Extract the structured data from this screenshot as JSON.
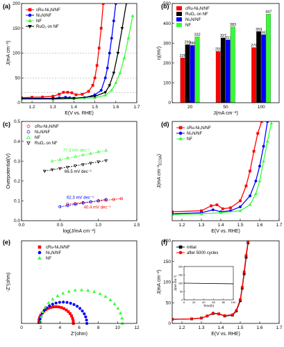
{
  "colors": {
    "cru": "#ff0000",
    "ni3n": "#0000ff",
    "nf": "#33ff33",
    "ruo2": "#000000"
  },
  "chart_data": [
    {
      "id": "a",
      "letter": "(a)",
      "type": "line",
      "xlabel": "E(V vs. RHE)",
      "ylabel": "J(mA cm⁻²)",
      "xlim": [
        1.15,
        1.7
      ],
      "ylim": [
        0,
        200
      ],
      "xticks": [
        1.2,
        1.3,
        1.4,
        1.5,
        1.6,
        1.7
      ],
      "yticks": [
        0,
        50,
        100,
        150,
        200
      ],
      "hlines": [
        20,
        50,
        100
      ],
      "legend": "top-left",
      "series": [
        {
          "name": "cRu-Ni₃N/NF",
          "color": "cru",
          "marker": "square",
          "x": [
            1.15,
            1.2,
            1.25,
            1.3,
            1.33,
            1.35,
            1.37,
            1.39,
            1.41,
            1.44,
            1.47,
            1.49,
            1.5,
            1.51,
            1.52,
            1.53,
            1.54
          ],
          "y": [
            10,
            11,
            11.5,
            13,
            17,
            21,
            21,
            20,
            16,
            17,
            23,
            35,
            50,
            75,
            110,
            150,
            200
          ]
        },
        {
          "name": "Ni₃N/NF",
          "color": "ni3n",
          "marker": "circle",
          "x": [
            1.15,
            1.3,
            1.33,
            1.36,
            1.38,
            1.4,
            1.45,
            1.5,
            1.53,
            1.55,
            1.56,
            1.57,
            1.58,
            1.59,
            1.6
          ],
          "y": [
            9,
            9,
            10,
            11,
            10,
            9,
            10,
            16,
            25,
            50,
            70,
            100,
            130,
            165,
            200
          ]
        },
        {
          "name": "NF",
          "color": "nf",
          "marker": "triangle",
          "x": [
            1.15,
            1.3,
            1.4,
            1.5,
            1.55,
            1.58,
            1.6,
            1.62,
            1.64,
            1.66,
            1.68
          ],
          "y": [
            7,
            7,
            8,
            10,
            15,
            25,
            40,
            60,
            90,
            130,
            175
          ]
        },
        {
          "name": "RuO₂ on NF",
          "color": "ruo2",
          "marker": "triangle-down",
          "x": [
            1.15,
            1.3,
            1.4,
            1.5,
            1.55,
            1.57,
            1.59,
            1.61,
            1.63,
            1.65
          ],
          "y": [
            8,
            8,
            9,
            13,
            21,
            35,
            60,
            100,
            150,
            200
          ]
        }
      ]
    },
    {
      "id": "b",
      "letter": "(b)",
      "type": "bar",
      "xlabel": "J(mA cm⁻²)",
      "ylabel": "η(mV)",
      "ylim": [
        0,
        500
      ],
      "yticks": [
        0,
        100,
        200,
        300,
        400,
        500
      ],
      "categories": [
        "20",
        "50",
        "100"
      ],
      "legend": "top-left",
      "series": [
        {
          "name": "cRu-Ni₃N/NF",
          "color": "cru",
          "values": [
            226,
            259,
            278
          ]
        },
        {
          "name": "RuO₂ on NF",
          "color": "ruo2",
          "values": [
            293,
            327,
            359
          ]
        },
        {
          "name": "Ni₃N/NF",
          "color": "ni3n",
          "values": [
            289,
            317,
            343
          ]
        },
        {
          "name": "NF",
          "color": "nf",
          "values": [
            332,
            383,
            447
          ]
        }
      ]
    },
    {
      "id": "c",
      "letter": "(c)",
      "type": "scatter",
      "xlabel": "log(J/mA cm⁻²)",
      "ylabel": "Overpotential(V)",
      "xlim": [
        0.0,
        1.5
      ],
      "ylim": [
        0.0,
        0.5
      ],
      "xticks": [
        0.0,
        0.5,
        1.0,
        1.5
      ],
      "yticks": [
        0.0,
        0.1,
        0.2,
        0.3,
        0.4,
        0.5
      ],
      "legend": "top-left",
      "series": [
        {
          "name": "cRu-Ni₃N/NF",
          "color": "cru",
          "marker": "circle-open",
          "x": [
            0.6,
            0.7,
            0.8,
            0.9,
            1.0,
            1.1,
            1.2,
            1.3
          ],
          "y": [
            0.083,
            0.087,
            0.091,
            0.095,
            0.099,
            0.103,
            0.107,
            0.111
          ],
          "slope_label": "40.4 mV dec⁻¹"
        },
        {
          "name": "Ni₃N/NF",
          "color": "ni3n",
          "marker": "circle-open",
          "x": [
            0.5,
            0.6,
            0.7,
            0.8,
            0.9,
            1.0,
            1.1
          ],
          "y": [
            0.07,
            0.076,
            0.082,
            0.089,
            0.095,
            0.101,
            0.107
          ],
          "slope_label": "62.3 mV dec⁻¹"
        },
        {
          "name": "NF",
          "color": "nf",
          "marker": "triangle-open",
          "x": [
            0.4,
            0.5,
            0.6,
            0.7,
            0.8,
            0.9,
            1.0,
            1.1
          ],
          "y": [
            0.3,
            0.308,
            0.316,
            0.323,
            0.331,
            0.339,
            0.347,
            0.354
          ],
          "slope_label": "77.3 mV dec⁻¹"
        },
        {
          "name": "RuO₂ on NF",
          "color": "ruo2",
          "marker": "triangle-down-open",
          "x": [
            0.3,
            0.4,
            0.5,
            0.6,
            0.7,
            0.8,
            0.9,
            1.0,
            1.1
          ],
          "y": [
            0.25,
            0.257,
            0.263,
            0.27,
            0.277,
            0.283,
            0.29,
            0.297,
            0.303
          ],
          "slope_label": "66.5 mV dec⁻¹"
        }
      ]
    },
    {
      "id": "d",
      "letter": "(d)",
      "type": "line",
      "xlabel": "E(V vs. RHE)",
      "ylabel": "J(mA cm⁻²",
      "ylabel_sub": "ECSA",
      "ylabel_end": ")",
      "xlim": [
        1.15,
        1.7
      ],
      "ylim": [
        0,
        1.0
      ],
      "xticks": [
        1.2,
        1.3,
        1.4,
        1.5,
        1.6,
        1.7
      ],
      "yticks": [],
      "legend": "top-left",
      "series": [
        {
          "name": "cRu-Ni₃N/NF",
          "color": "cru",
          "marker": "square",
          "x": [
            1.15,
            1.3,
            1.35,
            1.38,
            1.41,
            1.45,
            1.5,
            1.53,
            1.55,
            1.57,
            1.59,
            1.61
          ],
          "y": [
            0.09,
            0.1,
            0.15,
            0.16,
            0.12,
            0.13,
            0.2,
            0.35,
            0.5,
            0.7,
            0.88,
            1.0
          ]
        },
        {
          "name": "Ni₃N/NF",
          "color": "ni3n",
          "marker": "circle",
          "x": [
            1.15,
            1.3,
            1.36,
            1.4,
            1.45,
            1.5,
            1.55,
            1.58,
            1.6,
            1.62,
            1.64
          ],
          "y": [
            0.07,
            0.08,
            0.11,
            0.09,
            0.1,
            0.14,
            0.25,
            0.4,
            0.55,
            0.75,
            1.0
          ]
        },
        {
          "name": "NF",
          "color": "nf",
          "marker": "triangle",
          "x": [
            1.15,
            1.3,
            1.4,
            1.5,
            1.55,
            1.58,
            1.6,
            1.62,
            1.64,
            1.66
          ],
          "y": [
            0.06,
            0.07,
            0.08,
            0.1,
            0.16,
            0.27,
            0.4,
            0.6,
            0.8,
            0.98
          ]
        }
      ]
    },
    {
      "id": "e",
      "letter": "(e)",
      "type": "scatter",
      "xlabel": "Z'(ohm)",
      "ylabel": "-Z''(ohm)",
      "xlim": [
        0,
        12
      ],
      "ylim": [
        0,
        7
      ],
      "xticks": [
        0,
        2,
        4,
        6,
        8,
        10,
        12
      ],
      "yticks": [],
      "legend": "top-left",
      "series": [
        {
          "name": "cRu-Ni₃N/NF",
          "color": "cru",
          "marker": "square",
          "arc": {
            "start": 1.8,
            "end": 5.4,
            "arc_top": 1.45
          }
        },
        {
          "name": "Ni₃N/NF",
          "color": "ni3n",
          "marker": "circle",
          "arc": {
            "start": 1.9,
            "end": 6.8,
            "arc_top": 1.85
          }
        },
        {
          "name": "NF",
          "color": "nf",
          "marker": "triangle",
          "arc": {
            "start": 2.0,
            "end": 10.5,
            "arc_top": 2.9
          }
        }
      ]
    },
    {
      "id": "f",
      "letter": "(f)",
      "type": "line",
      "xlabel": "E(V vs. RHE)",
      "ylabel": "J(mA cm⁻²)",
      "xlim": [
        1.15,
        1.7
      ],
      "ylim": [
        0,
        200
      ],
      "xticks": [
        1.2,
        1.3,
        1.4,
        1.5,
        1.6,
        1.7
      ],
      "yticks": [
        0,
        50,
        100,
        150,
        200
      ],
      "legend": "top-left",
      "series": [
        {
          "name": "initial",
          "color": "ruo2",
          "marker": "square",
          "x": [
            1.15,
            1.25,
            1.3,
            1.33,
            1.36,
            1.39,
            1.42,
            1.46,
            1.48,
            1.5,
            1.51,
            1.52,
            1.53,
            1.54
          ],
          "y": [
            10,
            11,
            13,
            18,
            24,
            23,
            18,
            20,
            30,
            55,
            85,
            120,
            160,
            195
          ]
        },
        {
          "name": "after 5000 cycles",
          "color": "cru",
          "marker": "circle",
          "x": [
            1.15,
            1.25,
            1.3,
            1.33,
            1.36,
            1.39,
            1.42,
            1.46,
            1.48,
            1.5,
            1.51,
            1.52,
            1.53,
            1.54
          ],
          "y": [
            10,
            11,
            13,
            18,
            25,
            23,
            19,
            21,
            32,
            58,
            88,
            125,
            165,
            198
          ]
        }
      ],
      "inset": {
        "type": "line",
        "xlabel": "Time(h)",
        "ylabel": "J(mA cm⁻²)",
        "xlim": [
          0,
          100
        ],
        "ylim": [
          0,
          200
        ],
        "xticks": [
          0,
          20,
          40,
          60,
          80,
          100
        ],
        "yticks": [
          0,
          50,
          100,
          150,
          200
        ],
        "x": [
          0,
          100
        ],
        "y": [
          100,
          96
        ]
      }
    }
  ]
}
